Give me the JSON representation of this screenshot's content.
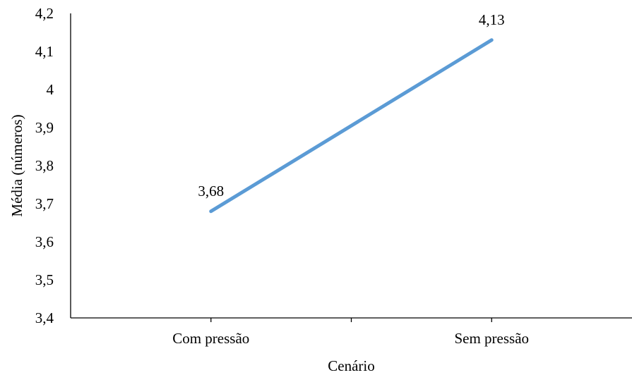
{
  "chart_data": {
    "type": "line",
    "categories": [
      "Com pressão",
      "Sem pressão"
    ],
    "series": [
      {
        "values": [
          3.68,
          4.13
        ],
        "labels": [
          "3,68",
          "4,13"
        ],
        "color": "#5B9BD5"
      }
    ],
    "xlabel": "Cenário",
    "ylabel": "Média  (números)",
    "ylim": [
      3.4,
      4.2
    ],
    "yticks": [
      "3,4",
      "3,5",
      "3,6",
      "3,7",
      "3,8",
      "3,9",
      "4",
      "4,1",
      "4,2"
    ],
    "grid": false,
    "legend": "none"
  }
}
